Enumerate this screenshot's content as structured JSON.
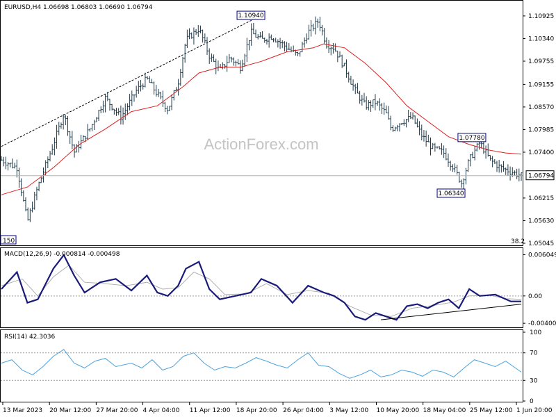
{
  "chart_data": [
    {
      "type": "ohlc",
      "header": "EURUSD,H4  1.06698 1.06803 1.06690 1.06794",
      "watermark": "ActionForex.com",
      "ylim": [
        1.05045,
        1.11265
      ],
      "y_ticks": [
        "1.10925",
        "1.10340",
        "1.09755",
        "1.09155",
        "1.08570",
        "1.07985",
        "1.07400",
        "1.06215",
        "1.05630",
        "1.05045"
      ],
      "current_price": "1.06794",
      "current_price_value": 1.06794,
      "annotations": [
        {
          "label": "1.10940",
          "x": 0.48,
          "y": 1.1094
        },
        {
          "label": "1.07780",
          "x": 0.905,
          "y": 1.0778
        },
        {
          "label": "1.06340",
          "x": 0.865,
          "y": 1.0634
        }
      ],
      "edge_labels": {
        "left_bottom": "150",
        "right_bottom": "38.2"
      },
      "close_path": [
        [
          0,
          1.072
        ],
        [
          0.03,
          1.07
        ],
        [
          0.05,
          1.056
        ],
        [
          0.07,
          1.065
        ],
        [
          0.1,
          1.076
        ],
        [
          0.12,
          1.084
        ],
        [
          0.14,
          1.074
        ],
        [
          0.17,
          1.08
        ],
        [
          0.2,
          1.088
        ],
        [
          0.23,
          1.083
        ],
        [
          0.26,
          1.09
        ],
        [
          0.28,
          1.093
        ],
        [
          0.3,
          1.089
        ],
        [
          0.32,
          1.085
        ],
        [
          0.34,
          1.092
        ],
        [
          0.355,
          1.103
        ],
        [
          0.38,
          1.106
        ],
        [
          0.4,
          1.099
        ],
        [
          0.42,
          1.095
        ],
        [
          0.44,
          1.0985
        ],
        [
          0.46,
          1.096
        ],
        [
          0.48,
          1.105
        ],
        [
          0.5,
          1.103
        ],
        [
          0.52,
          1.104
        ],
        [
          0.55,
          1.101
        ],
        [
          0.57,
          1.099
        ],
        [
          0.59,
          1.105
        ],
        [
          0.61,
          1.108
        ],
        [
          0.625,
          1.102
        ],
        [
          0.64,
          1.101
        ],
        [
          0.66,
          1.096
        ],
        [
          0.68,
          1.09
        ],
        [
          0.7,
          1.086
        ],
        [
          0.72,
          1.087
        ],
        [
          0.74,
          1.084
        ],
        [
          0.75,
          1.08
        ],
        [
          0.77,
          1.082
        ],
        [
          0.79,
          1.083
        ],
        [
          0.81,
          1.078
        ],
        [
          0.83,
          1.075
        ],
        [
          0.85,
          1.074
        ],
        [
          0.87,
          1.07
        ],
        [
          0.885,
          1.066
        ],
        [
          0.9,
          1.072
        ],
        [
          0.92,
          1.0765
        ],
        [
          0.94,
          1.072
        ],
        [
          0.96,
          1.07
        ],
        [
          0.98,
          1.069
        ],
        [
          1.0,
          1.0679
        ]
      ],
      "moving_average": [
        [
          0,
          1.063
        ],
        [
          0.05,
          1.065
        ],
        [
          0.1,
          1.07
        ],
        [
          0.15,
          1.076
        ],
        [
          0.2,
          1.08
        ],
        [
          0.25,
          1.0845
        ],
        [
          0.3,
          1.086
        ],
        [
          0.35,
          1.091
        ],
        [
          0.38,
          1.0945
        ],
        [
          0.42,
          1.096
        ],
        [
          0.46,
          1.096
        ],
        [
          0.5,
          1.0975
        ],
        [
          0.55,
          1.1
        ],
        [
          0.6,
          1.101
        ],
        [
          0.62,
          1.102
        ],
        [
          0.66,
          1.101
        ],
        [
          0.7,
          1.097
        ],
        [
          0.74,
          1.092
        ],
        [
          0.78,
          1.086
        ],
        [
          0.82,
          1.082
        ],
        [
          0.86,
          1.078
        ],
        [
          0.9,
          1.076
        ],
        [
          0.94,
          1.0745
        ],
        [
          0.97,
          1.0738
        ],
        [
          1.0,
          1.0735
        ]
      ],
      "trendline": [
        [
          0,
          1.0755
        ],
        [
          0.5,
          1.1094
        ]
      ]
    },
    {
      "type": "line",
      "header": "MACD(12,26,9) -0.000814 -0.000498",
      "ylim": [
        -0.0045,
        0.0065
      ],
      "y_ticks": [
        "0.006049",
        "0.00",
        "-0.004005"
      ],
      "y_tick_values": [
        0.006049,
        0,
        -0.004005
      ],
      "zero_line": 0,
      "macd": [
        [
          0,
          0.001
        ],
        [
          0.03,
          0.0035
        ],
        [
          0.05,
          -0.001
        ],
        [
          0.07,
          -0.0005
        ],
        [
          0.1,
          0.004
        ],
        [
          0.12,
          0.006
        ],
        [
          0.14,
          0.003
        ],
        [
          0.16,
          0.0005
        ],
        [
          0.19,
          0.002
        ],
        [
          0.22,
          0.0025
        ],
        [
          0.25,
          0.0008
        ],
        [
          0.28,
          0.003
        ],
        [
          0.3,
          0.0005
        ],
        [
          0.32,
          0.0
        ],
        [
          0.34,
          0.0015
        ],
        [
          0.355,
          0.004
        ],
        [
          0.38,
          0.005
        ],
        [
          0.4,
          0.001
        ],
        [
          0.42,
          -0.0005
        ],
        [
          0.45,
          0.0
        ],
        [
          0.48,
          0.0005
        ],
        [
          0.5,
          0.0025
        ],
        [
          0.53,
          0.0015
        ],
        [
          0.56,
          -0.001
        ],
        [
          0.59,
          0.0015
        ],
        [
          0.62,
          0.0005
        ],
        [
          0.64,
          0.0
        ],
        [
          0.66,
          -0.001
        ],
        [
          0.68,
          -0.003
        ],
        [
          0.7,
          -0.0035
        ],
        [
          0.72,
          -0.0025
        ],
        [
          0.74,
          -0.003
        ],
        [
          0.76,
          -0.0035
        ],
        [
          0.78,
          -0.0015
        ],
        [
          0.8,
          -0.0012
        ],
        [
          0.82,
          -0.0018
        ],
        [
          0.84,
          -0.001
        ],
        [
          0.86,
          -0.0005
        ],
        [
          0.88,
          -0.0018
        ],
        [
          0.9,
          0.001
        ],
        [
          0.92,
          0.0
        ],
        [
          0.95,
          0.0002
        ],
        [
          0.98,
          -0.0008
        ],
        [
          1.0,
          -0.0008
        ]
      ],
      "signal": [
        [
          0,
          0.0015
        ],
        [
          0.04,
          0.0025
        ],
        [
          0.07,
          0.0
        ],
        [
          0.1,
          0.0028
        ],
        [
          0.13,
          0.0045
        ],
        [
          0.16,
          0.002
        ],
        [
          0.2,
          0.0018
        ],
        [
          0.24,
          0.0015
        ],
        [
          0.28,
          0.002
        ],
        [
          0.31,
          0.001
        ],
        [
          0.34,
          0.0012
        ],
        [
          0.37,
          0.0035
        ],
        [
          0.4,
          0.0025
        ],
        [
          0.43,
          0.0002
        ],
        [
          0.47,
          0.0003
        ],
        [
          0.51,
          0.0018
        ],
        [
          0.55,
          0.0002
        ],
        [
          0.59,
          0.0008
        ],
        [
          0.63,
          0.0004
        ],
        [
          0.67,
          -0.0015
        ],
        [
          0.71,
          -0.0028
        ],
        [
          0.75,
          -0.003
        ],
        [
          0.79,
          -0.0018
        ],
        [
          0.83,
          -0.0014
        ],
        [
          0.87,
          -0.0009
        ],
        [
          0.9,
          0.0
        ],
        [
          0.94,
          0.0001
        ],
        [
          0.97,
          -0.0004
        ],
        [
          1.0,
          -0.0005
        ]
      ],
      "trendline": [
        [
          0.73,
          -0.0035
        ],
        [
          1.0,
          -0.0012
        ]
      ]
    },
    {
      "type": "line",
      "header": "RSI(14) 42.3036",
      "ylim": [
        0,
        100
      ],
      "y_ticks": [
        "100",
        "70",
        "30",
        "0"
      ],
      "y_tick_values": [
        100,
        70,
        30,
        0
      ],
      "levels": [
        70,
        30
      ],
      "rsi": [
        [
          0,
          55
        ],
        [
          0.02,
          60
        ],
        [
          0.04,
          45
        ],
        [
          0.06,
          38
        ],
        [
          0.08,
          50
        ],
        [
          0.1,
          65
        ],
        [
          0.12,
          75
        ],
        [
          0.14,
          55
        ],
        [
          0.16,
          48
        ],
        [
          0.18,
          58
        ],
        [
          0.2,
          62
        ],
        [
          0.22,
          50
        ],
        [
          0.25,
          55
        ],
        [
          0.27,
          48
        ],
        [
          0.29,
          60
        ],
        [
          0.31,
          45
        ],
        [
          0.33,
          50
        ],
        [
          0.35,
          65
        ],
        [
          0.37,
          70
        ],
        [
          0.39,
          55
        ],
        [
          0.41,
          45
        ],
        [
          0.43,
          50
        ],
        [
          0.45,
          48
        ],
        [
          0.47,
          55
        ],
        [
          0.49,
          63
        ],
        [
          0.51,
          58
        ],
        [
          0.53,
          52
        ],
        [
          0.55,
          48
        ],
        [
          0.57,
          60
        ],
        [
          0.59,
          70
        ],
        [
          0.61,
          52
        ],
        [
          0.63,
          50
        ],
        [
          0.65,
          40
        ],
        [
          0.67,
          33
        ],
        [
          0.69,
          38
        ],
        [
          0.71,
          45
        ],
        [
          0.73,
          35
        ],
        [
          0.75,
          38
        ],
        [
          0.77,
          45
        ],
        [
          0.79,
          42
        ],
        [
          0.81,
          36
        ],
        [
          0.83,
          45
        ],
        [
          0.85,
          42
        ],
        [
          0.87,
          35
        ],
        [
          0.89,
          48
        ],
        [
          0.91,
          60
        ],
        [
          0.93,
          55
        ],
        [
          0.95,
          50
        ],
        [
          0.97,
          58
        ],
        [
          1.0,
          42
        ]
      ]
    }
  ],
  "x_axis": {
    "labels": [
      "13 Mar 2023",
      "20 Mar 12:00",
      "27 Mar 20:00",
      "4 Apr 04:00",
      "11 Apr 12:00",
      "18 Apr 20:00",
      "26 Apr 04:00",
      "3 May 12:00",
      "10 May 20:00",
      "18 May 04:00",
      "25 May 12:00",
      "1 Jun 20:00"
    ]
  },
  "colors": {
    "bars": "#1e3a4a",
    "ma": "#dd2020",
    "macd": "#1a1a7a",
    "signal": "#b0b0b0",
    "rsi": "#4aa3df",
    "grid": "#999999",
    "box_border": "#000080"
  }
}
